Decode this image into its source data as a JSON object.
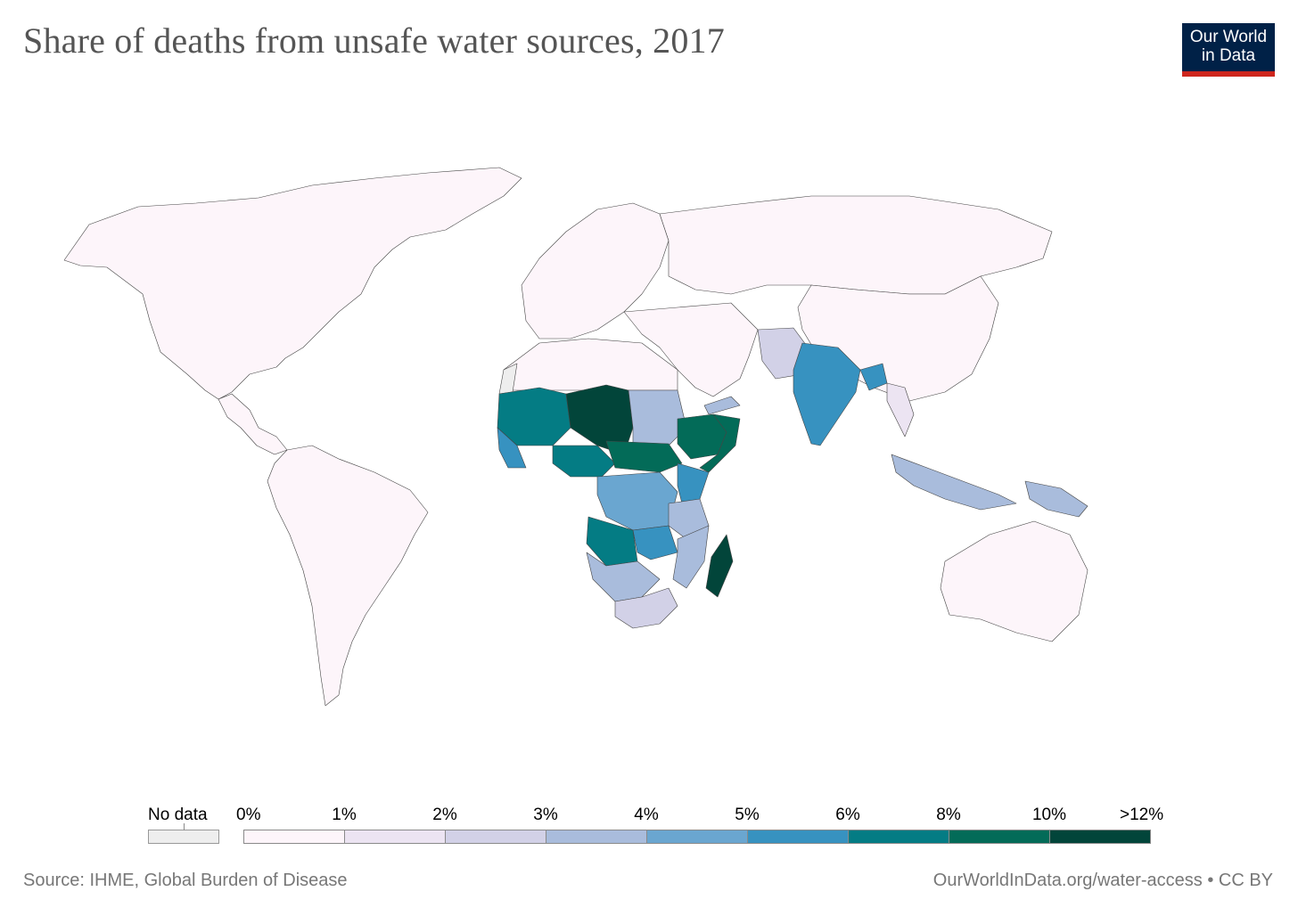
{
  "header": {
    "title": "Share of deaths from unsafe water sources, 2017"
  },
  "logo": {
    "line1": "Our World",
    "line2": "in Data",
    "bg_color": "#002147",
    "accent_color": "#ce261e"
  },
  "legend": {
    "no_data_label": "No data",
    "no_data_color": "#eeeeee",
    "bins": [
      {
        "label_start": "0%",
        "label_end": "1%",
        "color": "#fdf5fa"
      },
      {
        "label_start": "1%",
        "label_end": "2%",
        "color": "#ece4f2"
      },
      {
        "label_start": "2%",
        "label_end": "3%",
        "color": "#d2d1e7"
      },
      {
        "label_start": "3%",
        "label_end": "4%",
        "color": "#a9bcdc"
      },
      {
        "label_start": "4%",
        "label_end": "5%",
        "color": "#6aa6d0"
      },
      {
        "label_start": "5%",
        "label_end": "6%",
        "color": "#3792c0"
      },
      {
        "label_start": "6%",
        "label_end": "8%",
        "color": "#047c84"
      },
      {
        "label_start": "8%",
        "label_end": "10%",
        "color": "#036b58"
      },
      {
        "label_start": "10%",
        "label_end": ">12%",
        "color": "#02453a"
      }
    ]
  },
  "map_data": {
    "regions": [
      {
        "name": "North America",
        "bin": 0
      },
      {
        "name": "Central America",
        "bin": 0
      },
      {
        "name": "South America",
        "bin": 0
      },
      {
        "name": "Europe",
        "bin": 0
      },
      {
        "name": "Russia",
        "bin": 0
      },
      {
        "name": "North Africa",
        "bin": 0
      },
      {
        "name": "Middle East",
        "bin": 0
      },
      {
        "name": "China",
        "bin": 0
      },
      {
        "name": "Australia",
        "bin": 0
      },
      {
        "name": "Western Sahara",
        "bin": -1
      },
      {
        "name": "Pakistan",
        "bin": 2
      },
      {
        "name": "India",
        "bin": 5
      },
      {
        "name": "Bangladesh",
        "bin": 5
      },
      {
        "name": "Myanmar",
        "bin": 1
      },
      {
        "name": "Indonesia",
        "bin": 3
      },
      {
        "name": "Papua New Guinea",
        "bin": 3
      },
      {
        "name": "Mali / Mauritania",
        "bin": 6
      },
      {
        "name": "Niger / Chad",
        "bin": 8
      },
      {
        "name": "Nigeria",
        "bin": 6
      },
      {
        "name": "Sudan",
        "bin": 3
      },
      {
        "name": "Ethiopia",
        "bin": 7
      },
      {
        "name": "Somalia",
        "bin": 7
      },
      {
        "name": "South Sudan / CAR",
        "bin": 7
      },
      {
        "name": "DR Congo",
        "bin": 4
      },
      {
        "name": "Angola",
        "bin": 6
      },
      {
        "name": "Zambia",
        "bin": 5
      },
      {
        "name": "Tanzania",
        "bin": 3
      },
      {
        "name": "Kenya",
        "bin": 5
      },
      {
        "name": "Mozambique",
        "bin": 3
      },
      {
        "name": "Namibia / Botswana",
        "bin": 3
      },
      {
        "name": "South Africa",
        "bin": 2
      },
      {
        "name": "Madagascar",
        "bin": 8
      },
      {
        "name": "Guinea / Sierra Leone",
        "bin": 5
      },
      {
        "name": "Yemen",
        "bin": 3
      }
    ]
  },
  "footer": {
    "source": "Source: IHME, Global Burden of Disease",
    "url": "OurWorldInData.org/water-access • CC BY"
  }
}
